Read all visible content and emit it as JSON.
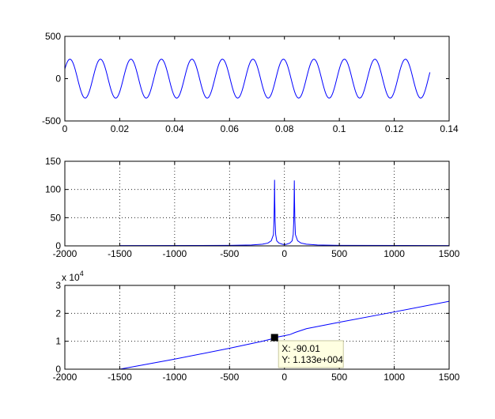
{
  "figure": {
    "background": "#ffffff"
  },
  "chart_data": [
    {
      "type": "line",
      "title": "",
      "xlabel": "",
      "ylabel": "",
      "xlim": [
        0,
        0.14
      ],
      "ylim": [
        -500,
        500
      ],
      "xticks": [
        0,
        0.02,
        0.04,
        0.06,
        0.08,
        0.1,
        0.12,
        0.14
      ],
      "xtick_labels": [
        "0",
        "0.02",
        "0.04",
        "0.06",
        "0.08",
        "0.1",
        "0.12",
        "0.14"
      ],
      "yticks": [
        -500,
        0,
        500
      ],
      "ytick_labels": [
        "-500",
        "0",
        "500"
      ],
      "grid": false,
      "series": [
        {
          "color": "#0000ff",
          "signal": {
            "kind": "sine",
            "amplitude": 230,
            "frequency_hz": 90,
            "phase_rad": 0.52,
            "x_start": 0,
            "x_end": 0.133
          }
        }
      ]
    },
    {
      "type": "line",
      "title": "",
      "xlabel": "",
      "ylabel": "",
      "xlim": [
        -2000,
        1500
      ],
      "ylim": [
        0,
        150
      ],
      "xticks": [
        -2000,
        -1500,
        -1000,
        -500,
        0,
        500,
        1000,
        1500
      ],
      "xtick_labels": [
        "-2000",
        "-1500",
        "-1000",
        "-500",
        "0",
        "500",
        "1000",
        "1500"
      ],
      "yticks": [
        0,
        50,
        100,
        150
      ],
      "ytick_labels": [
        "0",
        "50",
        "100",
        "150"
      ],
      "grid": true,
      "series": [
        {
          "color": "#0000ff",
          "x": [
            -1500,
            -500,
            -300,
            -200,
            -150,
            -120,
            -100,
            -95,
            -92,
            -90,
            -88,
            -85,
            -80,
            -70,
            -50,
            -20,
            0,
            20,
            50,
            70,
            80,
            85,
            88,
            90,
            92,
            95,
            100,
            120,
            150,
            200,
            300,
            500,
            1500
          ],
          "y": [
            0.5,
            0.8,
            1.5,
            3,
            5,
            9,
            20,
            45,
            80,
            117,
            80,
            45,
            20,
            9,
            5,
            3,
            2,
            3,
            5,
            9,
            20,
            45,
            80,
            116,
            80,
            45,
            20,
            9,
            5,
            3,
            1.5,
            0.8,
            0.5
          ]
        }
      ]
    },
    {
      "type": "line",
      "title": "",
      "xlabel": "",
      "ylabel": "",
      "y_multiplier_label": "x 10",
      "y_multiplier_exponent": "4",
      "xlim": [
        -2000,
        1500
      ],
      "ylim": [
        0,
        3
      ],
      "xticks": [
        -2000,
        -1500,
        -1000,
        -500,
        0,
        500,
        1000,
        1500
      ],
      "xtick_labels": [
        "-2000",
        "-1500",
        "-1000",
        "-500",
        "0",
        "500",
        "1000",
        "1500"
      ],
      "yticks": [
        0,
        1,
        2,
        3
      ],
      "ytick_labels": [
        "0",
        "1",
        "2",
        "3"
      ],
      "grid": true,
      "series": [
        {
          "color": "#0000ff",
          "x": [
            -1500,
            -1000,
            -500,
            -200,
            -100,
            -90.01,
            0,
            50,
            100,
            200,
            500,
            1000,
            1500
          ],
          "y": [
            0,
            0.36,
            0.75,
            1.0,
            1.1,
            1.133,
            1.2,
            1.24,
            1.32,
            1.45,
            1.68,
            2.05,
            2.43
          ]
        }
      ],
      "datatip": {
        "x": -90.01,
        "y": 1.133,
        "x_text": "X: -90.01",
        "y_text": "Y: 1.133e+004"
      }
    }
  ]
}
